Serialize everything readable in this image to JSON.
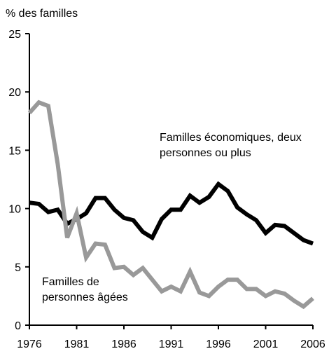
{
  "chart_data": {
    "type": "line",
    "y_label": "% des familles",
    "x": [
      1976,
      1977,
      1978,
      1979,
      1980,
      1981,
      1982,
      1983,
      1984,
      1985,
      1986,
      1987,
      1988,
      1989,
      1990,
      1991,
      1992,
      1993,
      1994,
      1995,
      1996,
      1997,
      1998,
      1999,
      2000,
      2001,
      2002,
      2003,
      2004,
      2005,
      2006
    ],
    "series": [
      {
        "name": "Familles économiques, deux personnes ou plus",
        "color": "#000000",
        "values": [
          10.5,
          10.4,
          9.7,
          9.9,
          8.7,
          9.1,
          9.6,
          10.9,
          10.9,
          9.9,
          9.2,
          9.0,
          8.0,
          7.5,
          9.1,
          9.9,
          9.9,
          11.1,
          10.5,
          11.0,
          12.1,
          11.5,
          10.1,
          9.5,
          9.0,
          7.9,
          8.6,
          8.5,
          7.9,
          7.3,
          7.0
        ]
      },
      {
        "name": "Familles de personnes âgées",
        "color": "#999999",
        "values": [
          18.2,
          19.1,
          18.8,
          13.8,
          7.5,
          9.6,
          5.8,
          7.0,
          6.9,
          4.9,
          5.0,
          4.3,
          4.9,
          3.9,
          2.9,
          3.3,
          2.9,
          4.6,
          2.8,
          2.5,
          3.3,
          3.9,
          3.9,
          3.1,
          3.1,
          2.5,
          2.9,
          2.7,
          2.1,
          1.6,
          2.3
        ]
      }
    ],
    "xlim": [
      1976,
      2006
    ],
    "xticks": [
      1976,
      1981,
      1986,
      1991,
      1996,
      2001,
      2006
    ],
    "ylim": [
      0,
      25
    ],
    "yticks": [
      0,
      5,
      10,
      15,
      20,
      25
    ],
    "grid": false
  }
}
